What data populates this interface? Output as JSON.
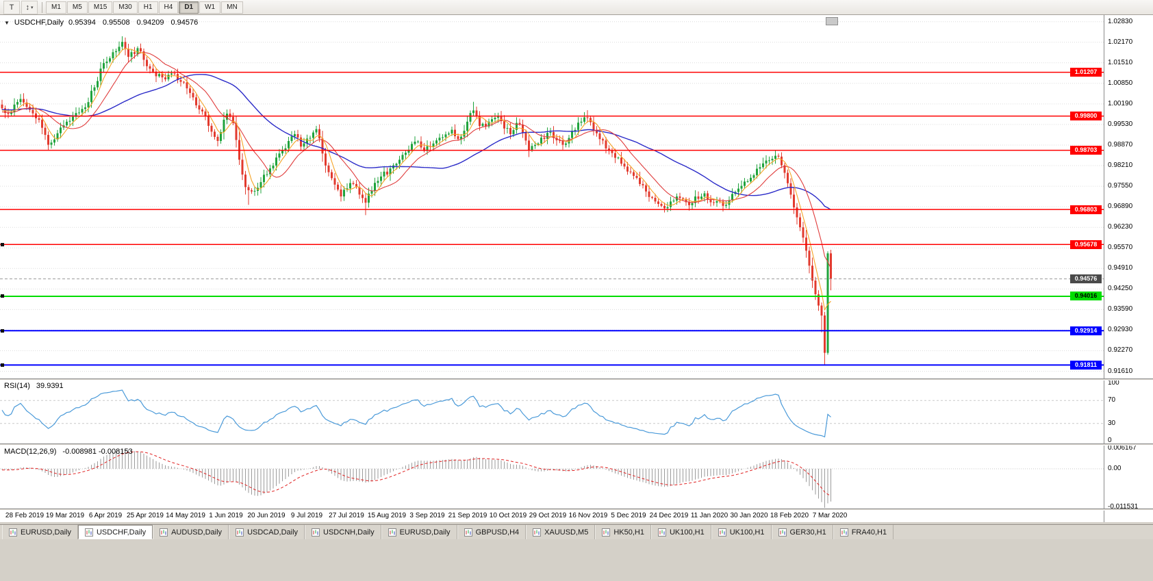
{
  "toolbar": {
    "icon1_glyph": "T",
    "icon2_glyph": "↕",
    "caret_glyph": "▾",
    "timeframes": [
      "M1",
      "M5",
      "M15",
      "M30",
      "H1",
      "H4",
      "D1",
      "W1",
      "MN"
    ],
    "active_timeframe": "D1"
  },
  "chart": {
    "collapse_glyph": "▼",
    "symbol": "USDCHF,Daily",
    "ohlc_text": "0.95394 0.95508 0.94209 0.94576",
    "price_ticks": [
      "1.02830",
      "1.02170",
      "1.01510",
      "1.00850",
      "1.00190",
      "0.99530",
      "0.98870",
      "0.98210",
      "0.97550",
      "0.96890",
      "0.96230",
      "0.95570",
      "0.94910",
      "0.94250",
      "0.93590",
      "0.92930",
      "0.92270",
      "0.91610"
    ],
    "hlines": [
      {
        "price": 1.01207,
        "label": "1.01207",
        "color": "#ff0000",
        "thickness": 1.5,
        "text_color": "#ffffff"
      },
      {
        "price": 0.998,
        "label": "0.99800",
        "color": "#ff0000",
        "thickness": 1.5,
        "text_color": "#ffffff"
      },
      {
        "price": 0.98703,
        "label": "0.98703",
        "color": "#ff0000",
        "thickness": 1.5,
        "text_color": "#ffffff"
      },
      {
        "price": 0.96803,
        "label": "0.96803",
        "color": "#ff0000",
        "thickness": 1.5,
        "text_color": "#ffffff"
      },
      {
        "price": 0.95678,
        "label": "0.95678",
        "color": "#ff0000",
        "thickness": 1.5,
        "text_color": "#ffffff"
      },
      {
        "price": 0.94016,
        "label": "0.94016",
        "color": "#00dd00",
        "thickness": 2,
        "text_color": "#000000"
      },
      {
        "price": 0.92914,
        "label": "0.92914",
        "color": "#0000ff",
        "thickness": 2,
        "text_color": "#ffffff"
      },
      {
        "price": 0.91811,
        "label": "0.91811",
        "color": "#0000ff",
        "thickness": 2,
        "text_color": "#ffffff"
      }
    ],
    "left_markers": [
      0.95678,
      0.94016,
      0.92914,
      0.91811
    ],
    "current_price": {
      "value": 0.94576,
      "label": "0.94576",
      "box_color": "#4a4a4a",
      "text_color": "#ffffff"
    },
    "dates": [
      "28 Feb 2019",
      "19 Mar 2019",
      "6 Apr 2019",
      "25 Apr 2019",
      "14 May 2019",
      "1 Jun 2019",
      "20 Jun 2019",
      "9 Jul 2019",
      "27 Jul 2019",
      "15 Aug 2019",
      "3 Sep 2019",
      "21 Sep 2019",
      "10 Oct 2019",
      "29 Oct 2019",
      "16 Nov 2019",
      "5 Dec 2019",
      "24 Dec 2019",
      "11 Jan 2020",
      "30 Jan 2020",
      "18 Feb 2020",
      "7 Mar 2020"
    ],
    "colors": {
      "up": "#1fa33c",
      "down": "#e23a2e",
      "ma_fast": "#f5a325",
      "ma_mid": "#e03c3c",
      "ma_slow": "#2a2ac8",
      "grid": "#dcdcdc",
      "rsi_line": "#4a9ad9",
      "macd_hist": "#9a9a9a",
      "macd_signal": "#e02020"
    }
  },
  "rsi": {
    "name": "RSI(14)",
    "value": "39.9391",
    "axis": [
      "100",
      "70",
      "30",
      "0"
    ],
    "levels": [
      70,
      30
    ]
  },
  "macd": {
    "name": "MACD(12,26,9)",
    "values": "-0.008981 -0.008153",
    "axis_max": "0.006167",
    "axis_zero": "0.00",
    "axis_min": "-0.011531"
  },
  "tabs": [
    {
      "label": "EURUSD,Daily"
    },
    {
      "label": "USDCHF,Daily",
      "active": true
    },
    {
      "label": "AUDUSD,Daily"
    },
    {
      "label": "USDCAD,Daily"
    },
    {
      "label": "USDCNH,Daily"
    },
    {
      "label": "EURUSD,Daily"
    },
    {
      "label": "GBPUSD,H4"
    },
    {
      "label": "XAUUSD,M5"
    },
    {
      "label": "HK50,H1"
    },
    {
      "label": "UK100,H1"
    },
    {
      "label": "UK100,H1"
    },
    {
      "label": "GER30,H1"
    },
    {
      "label": "FRA40,H1"
    }
  ],
  "chart_data": {
    "type": "candlestick",
    "symbol": "USDCHF",
    "period": "Daily",
    "num_bars": 270,
    "price_range": [
      0.9138,
      1.0302
    ],
    "last_bar": {
      "open": 0.95394,
      "high": 0.95508,
      "low": 0.94209,
      "close": 0.94576
    },
    "indicators": [
      {
        "name": "RSI",
        "period": 14,
        "value": 39.9391
      },
      {
        "name": "MACD",
        "fast": 12,
        "slow": 26,
        "signal": 9,
        "value": -0.008981,
        "signal_value": -0.008153
      }
    ],
    "support_resistance": [
      1.01207,
      0.998,
      0.98703,
      0.96803,
      0.95678,
      0.94016,
      0.92914,
      0.91811
    ],
    "close_keypoints": [
      [
        0,
        1.0005
      ],
      [
        3,
        0.9992
      ],
      [
        6,
        1.0035
      ],
      [
        9,
        1.0
      ],
      [
        12,
        0.9968
      ],
      [
        15,
        0.9888
      ],
      [
        18,
        0.9925
      ],
      [
        21,
        0.9962
      ],
      [
        24,
        0.999
      ],
      [
        27,
        1.0008
      ],
      [
        30,
        1.0072
      ],
      [
        33,
        1.015
      ],
      [
        36,
        1.0185
      ],
      [
        39,
        1.0218
      ],
      [
        41,
        1.017
      ],
      [
        44,
        1.0198
      ],
      [
        47,
        1.014
      ],
      [
        50,
        1.0108
      ],
      [
        53,
        1.0098
      ],
      [
        56,
        1.0115
      ],
      [
        59,
        1.0088
      ],
      [
        62,
        1.004
      ],
      [
        65,
        0.9995
      ],
      [
        68,
        0.993
      ],
      [
        70,
        0.99
      ],
      [
        73,
        0.9988
      ],
      [
        75,
        0.9958
      ],
      [
        77,
        0.984
      ],
      [
        79,
        0.9752
      ],
      [
        81,
        0.9738
      ],
      [
        84,
        0.9768
      ],
      [
        87,
        0.9812
      ],
      [
        90,
        0.986
      ],
      [
        93,
        0.99
      ],
      [
        95,
        0.9922
      ],
      [
        97,
        0.9882
      ],
      [
        100,
        0.991
      ],
      [
        102,
        0.9938
      ],
      [
        104,
        0.986
      ],
      [
        106,
        0.98
      ],
      [
        108,
        0.976
      ],
      [
        110,
        0.9722
      ],
      [
        112,
        0.9748
      ],
      [
        114,
        0.9762
      ],
      [
        116,
        0.9728
      ],
      [
        118,
        0.9702
      ],
      [
        120,
        0.974
      ],
      [
        123,
        0.9786
      ],
      [
        126,
        0.9812
      ],
      [
        129,
        0.984
      ],
      [
        132,
        0.9872
      ],
      [
        134,
        0.9898
      ],
      [
        137,
        0.9868
      ],
      [
        140,
        0.9892
      ],
      [
        143,
        0.9912
      ],
      [
        146,
        0.9936
      ],
      [
        148,
        0.9906
      ],
      [
        151,
        0.9962
      ],
      [
        153,
        0.9998
      ],
      [
        155,
        0.9948
      ],
      [
        158,
        0.9962
      ],
      [
        161,
        0.9978
      ],
      [
        163,
        0.994
      ],
      [
        165,
        0.9922
      ],
      [
        167,
        0.9958
      ],
      [
        169,
        0.9926
      ],
      [
        171,
        0.987
      ],
      [
        174,
        0.9892
      ],
      [
        177,
        0.9926
      ],
      [
        180,
        0.9902
      ],
      [
        183,
        0.9892
      ],
      [
        185,
        0.9932
      ],
      [
        188,
        0.9962
      ],
      [
        190,
        0.9974
      ],
      [
        192,
        0.9936
      ],
      [
        194,
        0.9906
      ],
      [
        196,
        0.9876
      ],
      [
        199,
        0.9846
      ],
      [
        202,
        0.9818
      ],
      [
        205,
        0.9788
      ],
      [
        207,
        0.9762
      ],
      [
        209,
        0.9738
      ],
      [
        212,
        0.9706
      ],
      [
        215,
        0.9684
      ],
      [
        217,
        0.9706
      ],
      [
        219,
        0.9722
      ],
      [
        221,
        0.9714
      ],
      [
        223,
        0.9694
      ],
      [
        225,
        0.9722
      ],
      [
        228,
        0.9732
      ],
      [
        231,
        0.9702
      ],
      [
        234,
        0.9692
      ],
      [
        237,
        0.973
      ],
      [
        240,
        0.9756
      ],
      [
        243,
        0.9782
      ],
      [
        246,
        0.9816
      ],
      [
        249,
        0.9838
      ],
      [
        252,
        0.985
      ],
      [
        254,
        0.9798
      ],
      [
        256,
        0.9728
      ],
      [
        258,
        0.9655
      ],
      [
        260,
        0.959
      ],
      [
        261,
        0.9548
      ],
      [
        262,
        0.95
      ],
      [
        263,
        0.9452
      ],
      [
        264,
        0.9408
      ],
      [
        265,
        0.9372
      ],
      [
        266,
        0.934
      ],
      [
        267,
        0.922
      ],
      [
        268,
        0.95394
      ],
      [
        269,
        0.94576
      ]
    ],
    "wick_overrides": {
      "80": {
        "low": 0.9695
      },
      "118": {
        "low": 0.9662
      },
      "153": {
        "high": 1.0026
      },
      "190": {
        "high": 0.9999
      },
      "266": {
        "low": 0.9286
      }
    },
    "final_bars": {
      "267": {
        "o": 0.934,
        "h": 0.9352,
        "l": 0.91825,
        "c": 0.922
      },
      "268": {
        "o": 0.922,
        "h": 0.9546,
        "l": 0.9214,
        "c": 0.95394
      },
      "269": {
        "o": 0.95394,
        "h": 0.95508,
        "l": 0.94209,
        "c": 0.94576
      }
    }
  }
}
